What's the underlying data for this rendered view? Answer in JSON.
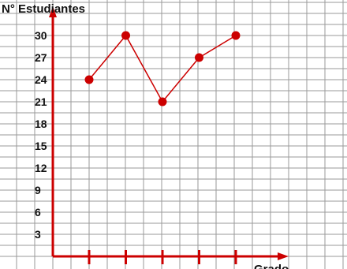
{
  "chart_data": {
    "type": "line",
    "title": "",
    "ylabel": "N° Estudiantes",
    "xlabel": "Grado",
    "ylim": [
      0,
      33
    ],
    "yticks": [
      3,
      6,
      9,
      12,
      15,
      18,
      21,
      24,
      27,
      30
    ],
    "x": [
      1,
      2,
      3,
      4,
      5
    ],
    "series": [
      {
        "values": [
          24,
          30,
          21,
          27,
          30
        ]
      }
    ],
    "grid": true,
    "colors": {
      "series": "#cc0000",
      "axis": "#cc0000",
      "grid": "#9a9a9a",
      "text": "#111111"
    }
  }
}
